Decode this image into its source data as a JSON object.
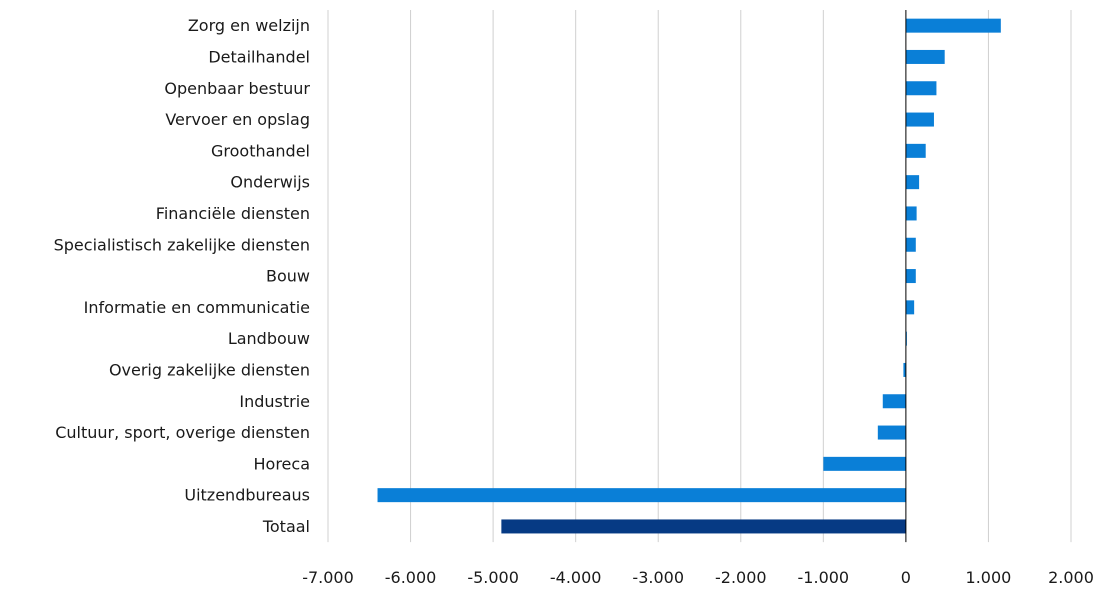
{
  "chart_data": {
    "type": "bar",
    "orientation": "horizontal",
    "title": "",
    "xlabel": "",
    "ylabel": "",
    "xlim": [
      -7000,
      2000
    ],
    "x_ticks": [
      -7000,
      -6000,
      -5000,
      -4000,
      -3000,
      -2000,
      -1000,
      0,
      1000,
      2000
    ],
    "x_tick_labels": [
      "-7.000",
      "-6.000",
      "-5.000",
      "-4.000",
      "-3.000",
      "-2.000",
      "-1.000",
      "0",
      "1.000",
      "2.000"
    ],
    "grid": "vertical",
    "legend": "none",
    "categories": [
      "Zorg en welzijn",
      "Detailhandel",
      "Openbaar bestuur",
      "Vervoer en opslag",
      "Groothandel",
      "Onderwijs",
      "Financiële diensten",
      "Specialistisch zakelijke diensten",
      "Bouw",
      "Informatie en communicatie",
      "Landbouw",
      "Overig zakelijke diensten",
      "Industrie",
      "Cultuur, sport, overige diensten",
      "Horeca",
      "Uitzendbureaus",
      "Totaal"
    ],
    "values": [
      1150,
      470,
      370,
      340,
      240,
      160,
      130,
      120,
      120,
      100,
      10,
      -30,
      -280,
      -340,
      -1000,
      -6400,
      -4900
    ],
    "colors": {
      "bar": "#0a7fd7",
      "total": "#063a84",
      "grid": "#d0d0d0",
      "axis": "#000000"
    },
    "highlight_category": "Totaal"
  }
}
